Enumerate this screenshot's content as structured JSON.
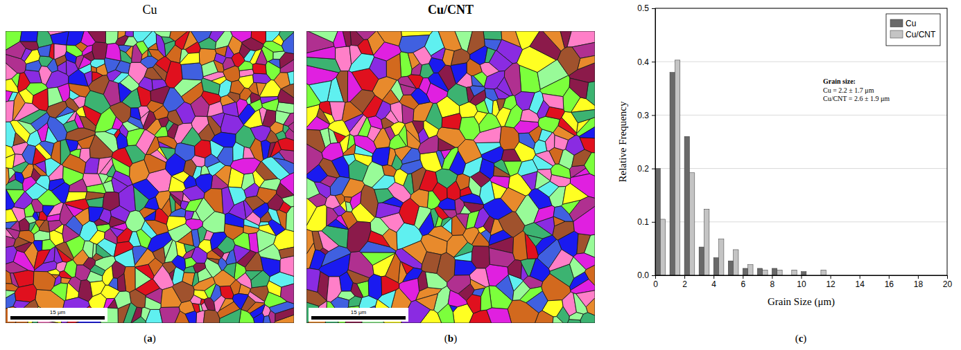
{
  "panels": [
    {
      "label": "(a)",
      "title": "Cu",
      "scale_bar": "15 μm"
    },
    {
      "label": "(b)",
      "title": "Cu/CNT",
      "scale_bar": "15 μm"
    }
  ],
  "chart_data": {
    "type": "histogram",
    "panel_label": "(c)",
    "x_label": "Grain Size (μm)",
    "y_label": "Relative Frequency",
    "bins": [
      0,
      1,
      2,
      3,
      4,
      5,
      6,
      7,
      8,
      9,
      10,
      11,
      12
    ],
    "series": [
      {
        "name": "Cu",
        "color": "#696969",
        "values": [
          0.2,
          0.38,
          0.26,
          0.053,
          0.033,
          0.027,
          0.013,
          0.013,
          0.013,
          0.0,
          0.007,
          0.0
        ]
      },
      {
        "name": "Cu/CNT",
        "color": "#c4c4c4",
        "values": [
          0.105,
          0.403,
          0.192,
          0.124,
          0.068,
          0.048,
          0.02,
          0.01,
          0.01,
          0.01,
          0.0,
          0.01
        ]
      }
    ],
    "xlim": [
      0,
      20
    ],
    "xticks": [
      0,
      2,
      4,
      6,
      8,
      10,
      12,
      14,
      16,
      18,
      20
    ],
    "ylim": [
      0,
      0.5
    ],
    "yticks": [
      {
        "value": 0,
        "label": "0.0"
      },
      {
        "value": 0.1,
        "label": "0.1"
      },
      {
        "value": 0.2,
        "label": "0.2"
      },
      {
        "value": 0.3,
        "label": "0.3"
      },
      {
        "value": 0.4,
        "label": "0.4"
      },
      {
        "value": 0.5,
        "label": "0.5"
      }
    ],
    "grid": true,
    "legend": "top-right",
    "annotation": {
      "title": "Grain size:",
      "lines": [
        "Cu = 2.2 ± 1.7 μm",
        "Cu/CNT = 2.6 ± 1.9 μm"
      ]
    }
  }
}
